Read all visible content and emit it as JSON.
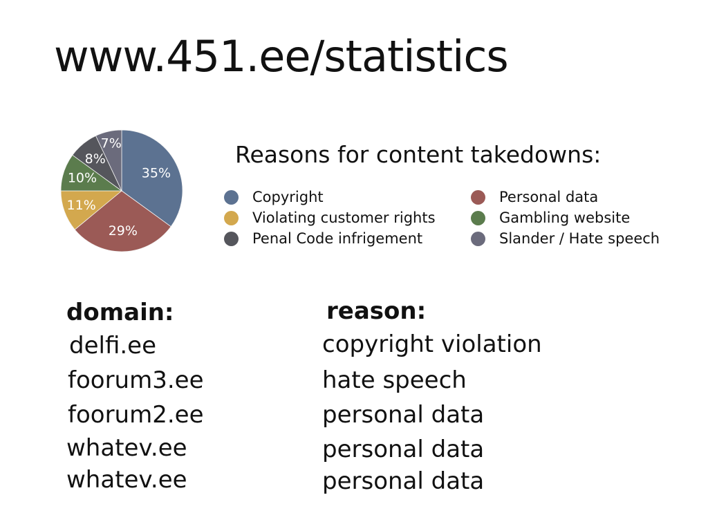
{
  "slide": {
    "title": "www.451.ee/statistics"
  },
  "chart_data": {
    "type": "pie",
    "title": "Reasons for content takedowns:",
    "categories": [
      "Copyright",
      "Personal data",
      "Violating customer rights",
      "Gambling website",
      "Penal Code infrigement",
      "Slander / Hate speech"
    ],
    "values": [
      35,
      29,
      11,
      10,
      8,
      7
    ],
    "labels": [
      "35%",
      "29%",
      "11%",
      "10%",
      "8%",
      "7%"
    ],
    "colors": [
      "#5c7291",
      "#9b5a56",
      "#d3a84e",
      "#5b7c4d",
      "#55565c",
      "#6b6b7c"
    ],
    "legend_position": "right"
  },
  "table": {
    "headers": {
      "domain": "domain:",
      "reason": "reason:"
    },
    "rows": [
      {
        "domain": "delfi.ee",
        "reason": "copyright violation"
      },
      {
        "domain": "foorum3.ee",
        "reason": "hate speech"
      },
      {
        "domain": "foorum2.ee",
        "reason": "personal data"
      },
      {
        "domain": "whatev.ee",
        "reason": "personal data"
      },
      {
        "domain": "whatev.ee",
        "reason": "personal data"
      }
    ]
  }
}
